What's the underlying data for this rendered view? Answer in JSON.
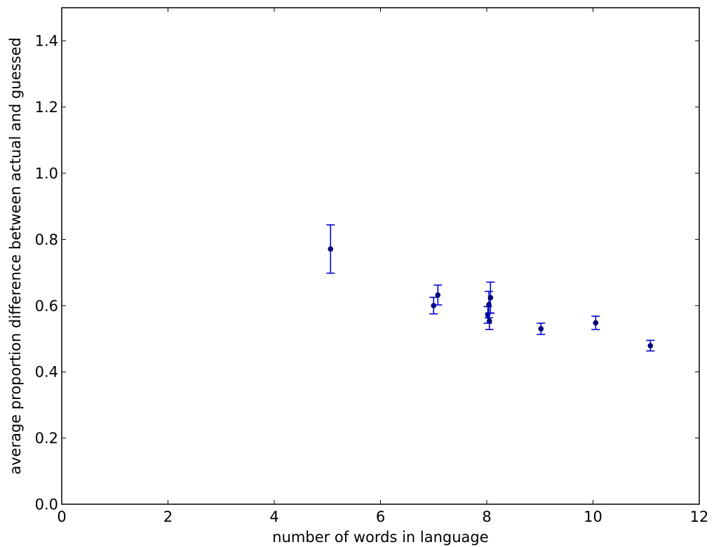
{
  "chart_data": {
    "type": "scatter",
    "xlabel": "number of words in language",
    "ylabel": "average proportion difference between actual and guessed",
    "xlim": [
      0,
      12
    ],
    "ylim": [
      0,
      1.5
    ],
    "x_ticks": [
      0,
      2,
      4,
      6,
      8,
      10,
      12
    ],
    "y_ticks": [
      0.0,
      0.2,
      0.4,
      0.6,
      0.8,
      1.0,
      1.2,
      1.4
    ],
    "x_tick_labels": [
      "0",
      "2",
      "4",
      "6",
      "8",
      "10",
      "12"
    ],
    "y_tick_labels": [
      "0.0",
      "0.2",
      "0.4",
      "0.6",
      "0.8",
      "1.0",
      "1.2",
      "1.4"
    ],
    "grid": false,
    "series": [
      {
        "color": "#00008b",
        "errorbar_color": "#0000cc",
        "points": [
          {
            "x": 5.06,
            "y": 0.771,
            "err": 0.073
          },
          {
            "x": 7.0,
            "y": 0.6,
            "err": 0.025
          },
          {
            "x": 7.08,
            "y": 0.632,
            "err": 0.03
          },
          {
            "x": 8.02,
            "y": 0.572,
            "err": 0.025
          },
          {
            "x": 8.04,
            "y": 0.603,
            "err": 0.04
          },
          {
            "x": 8.05,
            "y": 0.553,
            "err": 0.025
          },
          {
            "x": 8.07,
            "y": 0.624,
            "err": 0.047
          },
          {
            "x": 9.02,
            "y": 0.53,
            "err": 0.017
          },
          {
            "x": 10.05,
            "y": 0.548,
            "err": 0.02
          },
          {
            "x": 11.08,
            "y": 0.479,
            "err": 0.016
          }
        ]
      }
    ]
  }
}
